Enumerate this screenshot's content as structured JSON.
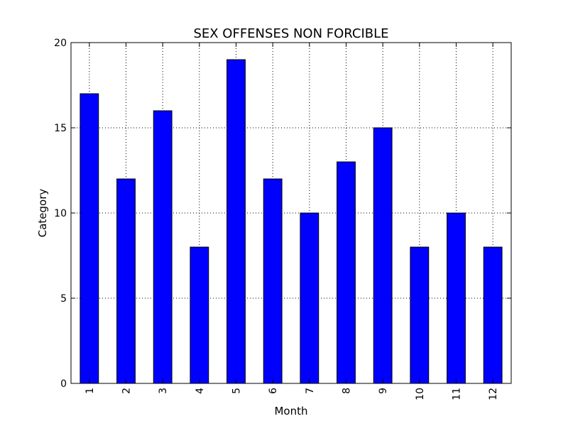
{
  "chart_data": {
    "type": "bar",
    "title": "SEX OFFENSES NON FORCIBLE",
    "xlabel": "Month",
    "ylabel": "Category",
    "categories": [
      "1",
      "2",
      "3",
      "4",
      "5",
      "6",
      "7",
      "8",
      "9",
      "10",
      "11",
      "12"
    ],
    "values": [
      17,
      12,
      16,
      8,
      19,
      12,
      10,
      13,
      15,
      8,
      10,
      8
    ],
    "ylim": [
      0,
      20
    ],
    "yticks": [
      "0",
      "5",
      "10",
      "15",
      "20"
    ],
    "grid": true,
    "x_tick_rotation": "vertical",
    "colors": {
      "bar_fill": "#0000ff",
      "bar_edge": "#000000",
      "grid": "#000000",
      "axes": "#000000",
      "background": "#ffffff"
    }
  }
}
